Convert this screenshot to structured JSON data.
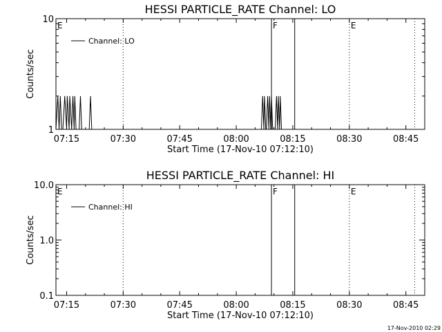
{
  "footer": {
    "timestamp": "17-Nov-2010 02:29"
  },
  "chart_data": [
    {
      "type": "line",
      "title": "HESSI PARTICLE_RATE Channel: LO",
      "xlabel": "Start Time (17-Nov-10 07:12:10)",
      "ylabel": "Counts/sec",
      "y_scale": "log",
      "ylim": [
        1,
        10
      ],
      "y_ticks": [
        {
          "value": 1,
          "label": "1"
        },
        {
          "value": 10,
          "label": "10"
        }
      ],
      "xlim": [
        "07:12:10",
        "08:50:00"
      ],
      "x_ticks": [
        "07:15",
        "07:30",
        "07:45",
        "08:00",
        "08:15",
        "08:30",
        "08:45"
      ],
      "legend": {
        "label": "Channel: LO",
        "position": "top-left"
      },
      "grid": false,
      "markers": [
        {
          "time": "07:12:10",
          "label": "E",
          "style": "dotted"
        },
        {
          "time": "07:30:00",
          "label": "",
          "style": "dotted"
        },
        {
          "time": "08:09:20",
          "label": "F",
          "style": "solid"
        },
        {
          "time": "08:15:30",
          "label": "",
          "style": "solid"
        },
        {
          "time": "08:30:00",
          "label": "E",
          "style": "dotted"
        },
        {
          "time": "08:47:20",
          "label": "",
          "style": "dotted"
        }
      ],
      "series": [
        {
          "values": [
            [
              "07:12:10",
              1
            ],
            [
              "07:12:40",
              2
            ],
            [
              "07:13:00",
              1
            ],
            [
              "07:13:20",
              2
            ],
            [
              "07:13:40",
              1
            ],
            [
              "07:14:00",
              1
            ],
            [
              "07:14:30",
              2
            ],
            [
              "07:15:00",
              1
            ],
            [
              "07:15:10",
              2
            ],
            [
              "07:15:40",
              1
            ],
            [
              "07:15:50",
              2
            ],
            [
              "07:16:20",
              1
            ],
            [
              "07:16:40",
              2
            ],
            [
              "07:17:00",
              1
            ],
            [
              "07:17:10",
              2
            ],
            [
              "07:17:30",
              1
            ],
            [
              "07:18:20",
              1
            ],
            [
              "07:18:40",
              2
            ],
            [
              "07:19:00",
              1
            ],
            [
              "07:21:00",
              1
            ],
            [
              "07:21:20",
              2
            ],
            [
              "07:21:40",
              1
            ],
            [
              "08:06:40",
              1
            ],
            [
              "08:07:00",
              2
            ],
            [
              "08:07:20",
              1
            ],
            [
              "08:07:30",
              2
            ],
            [
              "08:07:50",
              1
            ],
            [
              "08:08:00",
              1
            ],
            [
              "08:08:20",
              2
            ],
            [
              "08:08:40",
              1
            ],
            [
              "08:08:50",
              2
            ],
            [
              "08:09:10",
              1
            ],
            [
              "08:09:20",
              2
            ],
            [
              "08:09:40",
              1
            ],
            [
              "08:10:20",
              1
            ],
            [
              "08:10:40",
              2
            ],
            [
              "08:11:00",
              1
            ],
            [
              "08:11:10",
              2
            ],
            [
              "08:11:30",
              1
            ],
            [
              "08:11:40",
              2
            ],
            [
              "08:12:00",
              1
            ]
          ]
        }
      ]
    },
    {
      "type": "line",
      "title": "HESSI PARTICLE_RATE Channel: HI",
      "xlabel": "Start Time (17-Nov-10 07:12:10)",
      "ylabel": "Counts/sec",
      "y_scale": "log",
      "ylim": [
        0.1,
        10
      ],
      "y_ticks": [
        {
          "value": 0.1,
          "label": "0.1"
        },
        {
          "value": 1,
          "label": "1.0"
        },
        {
          "value": 10,
          "label": "10.0"
        }
      ],
      "xlim": [
        "07:12:10",
        "08:50:00"
      ],
      "x_ticks": [
        "07:15",
        "07:30",
        "07:45",
        "08:00",
        "08:15",
        "08:30",
        "08:45"
      ],
      "legend": {
        "label": "Channel: HI",
        "position": "top-left"
      },
      "grid": false,
      "markers": [
        {
          "time": "07:12:10",
          "label": "E",
          "style": "dotted"
        },
        {
          "time": "07:30:00",
          "label": "",
          "style": "dotted"
        },
        {
          "time": "08:09:20",
          "label": "F",
          "style": "solid"
        },
        {
          "time": "08:15:30",
          "label": "",
          "style": "solid"
        },
        {
          "time": "08:30:00",
          "label": "E",
          "style": "dotted"
        },
        {
          "time": "08:47:20",
          "label": "",
          "style": "dotted"
        }
      ],
      "series": [
        {
          "values": []
        }
      ]
    }
  ]
}
